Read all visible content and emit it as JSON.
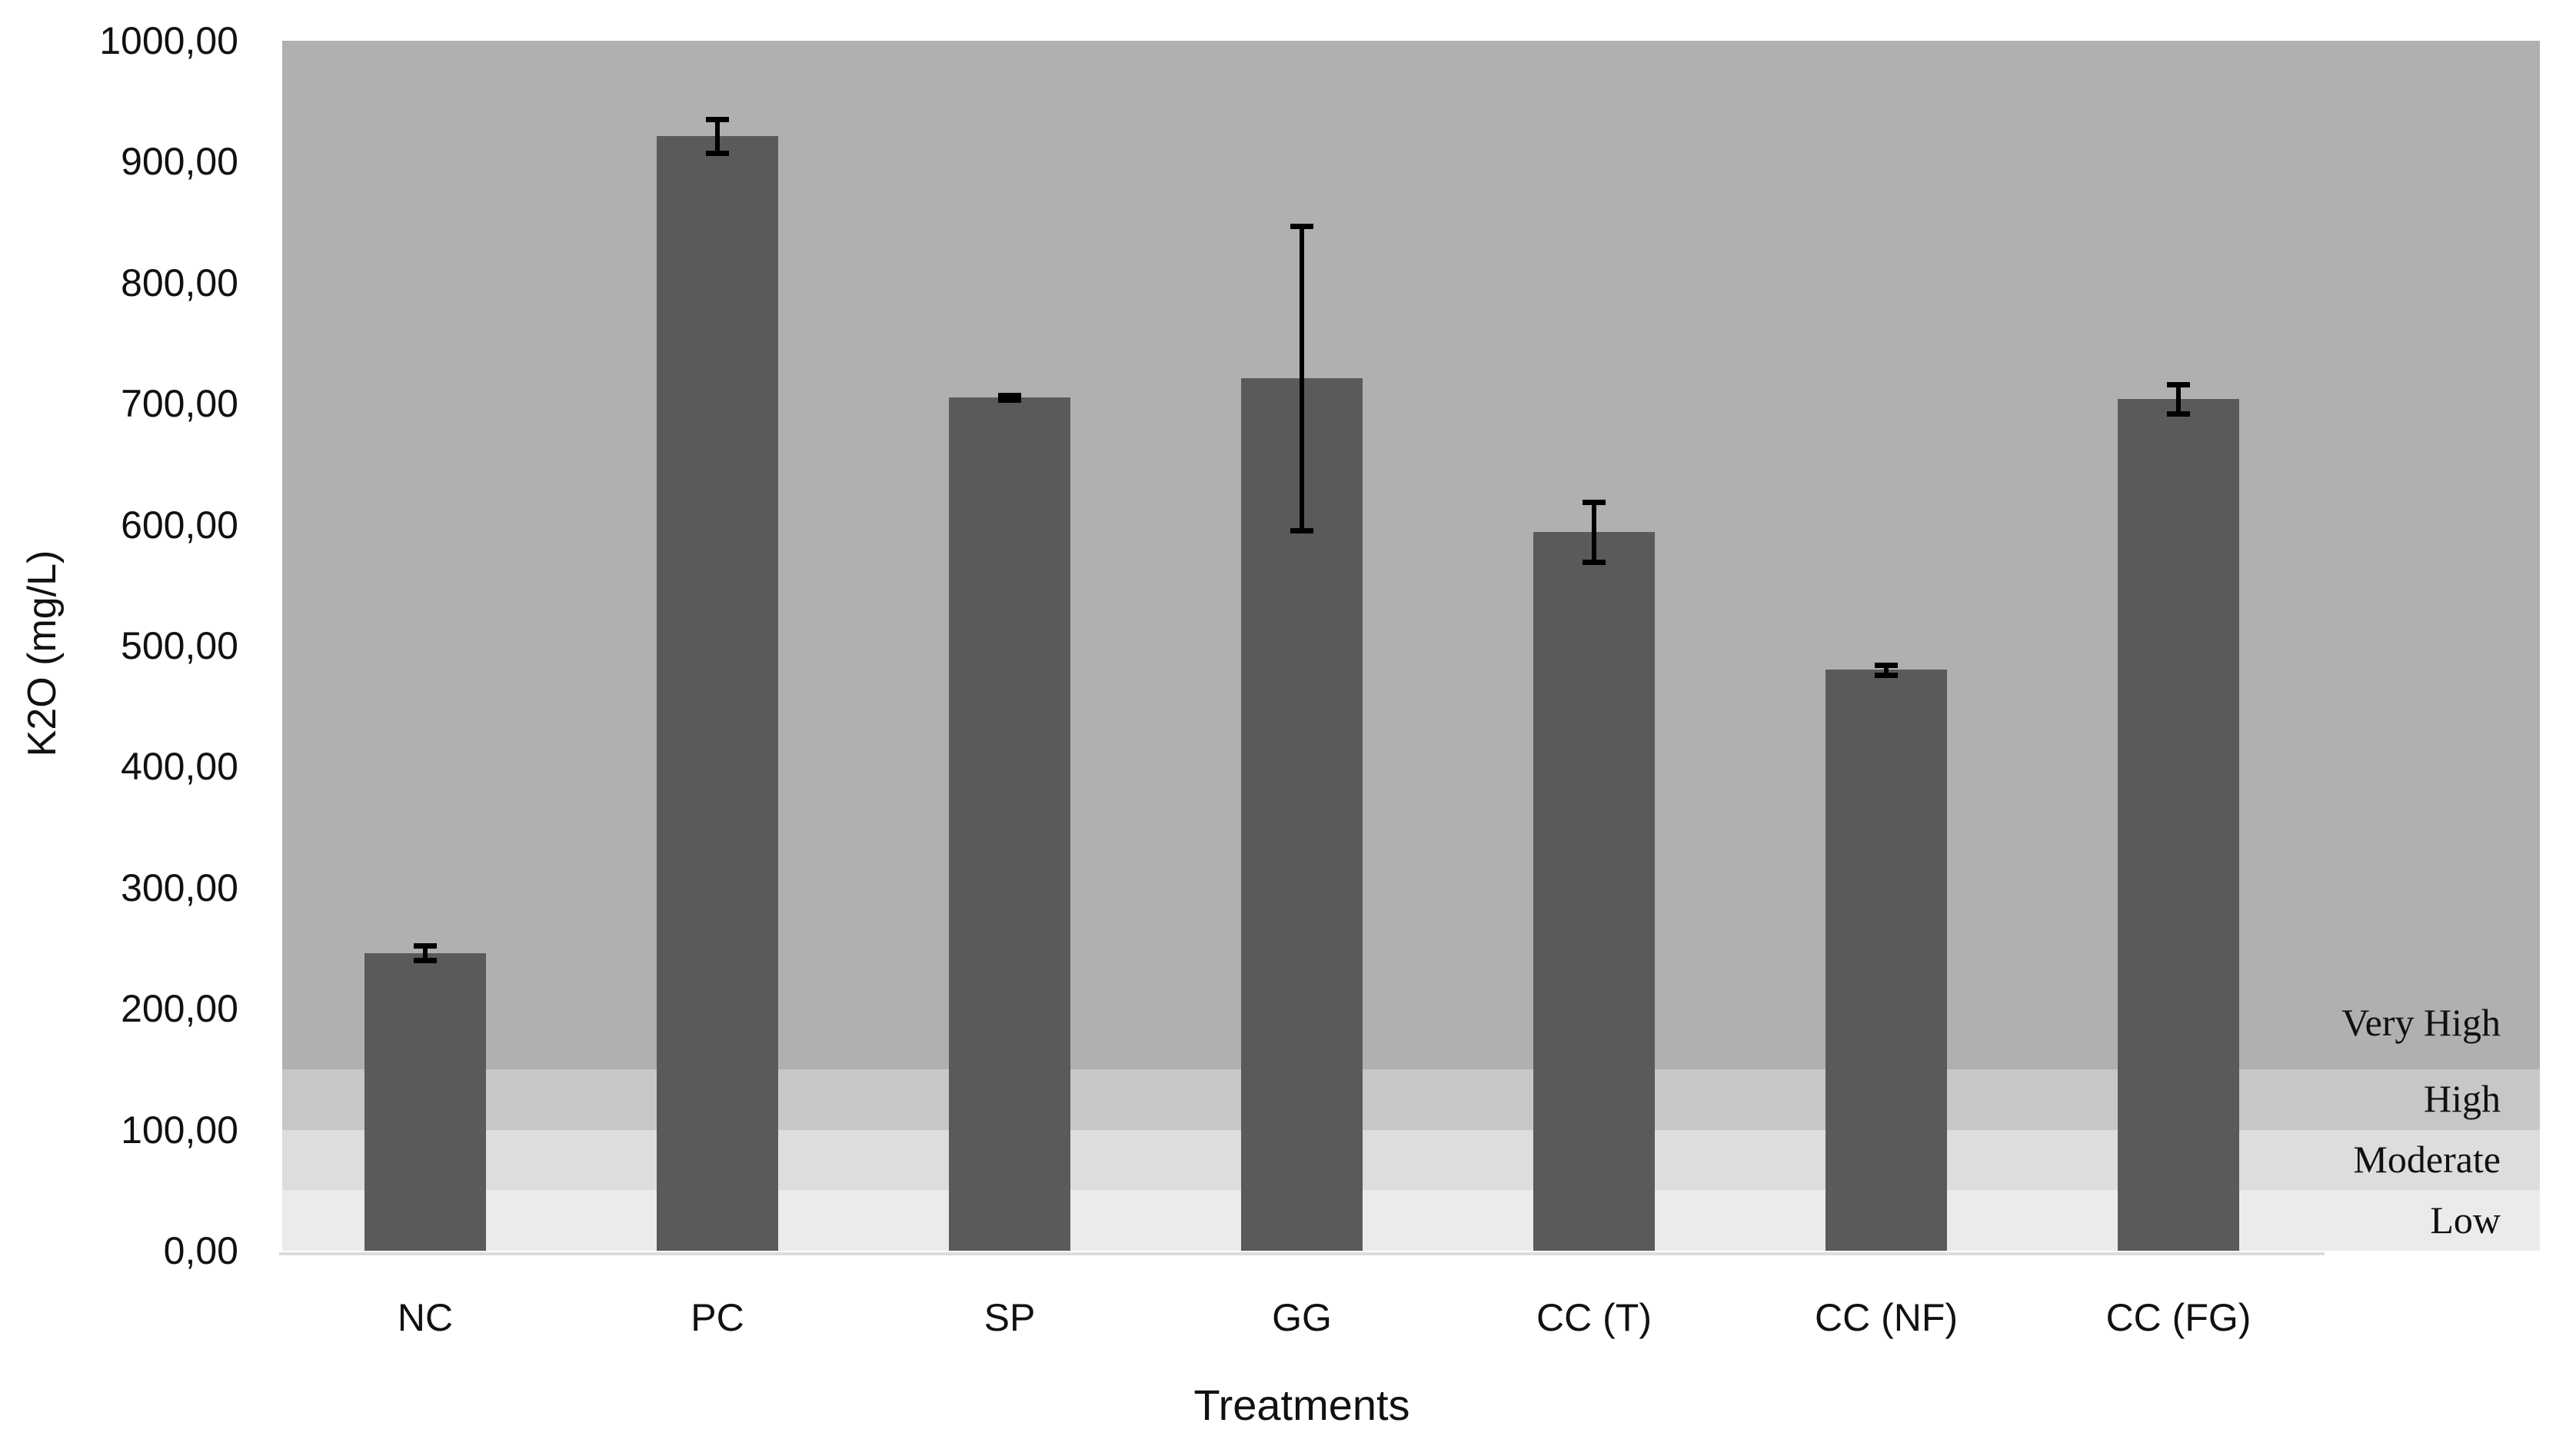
{
  "chart_data": {
    "type": "bar",
    "title": "",
    "xlabel": "Treatments",
    "ylabel": "K2O (mg/L)",
    "ylim": [
      0,
      1000
    ],
    "yticks": [
      "0,00",
      "100,00",
      "200,00",
      "300,00",
      "400,00",
      "500,00",
      "600,00",
      "700,00",
      "800,00",
      "900,00",
      "1000,00"
    ],
    "categories": [
      "NC",
      "PC",
      "SP",
      "GG",
      "CC (T)",
      "CC (NF)",
      "CC (FG)"
    ],
    "values": [
      246,
      921,
      705,
      721,
      594,
      480,
      704
    ],
    "error": [
      6,
      14,
      2,
      126,
      25,
      4,
      12
    ],
    "grid": false,
    "legend": null,
    "background_bands": [
      {
        "label": "Low",
        "from": 0,
        "to": 50,
        "color": "#ebebeb"
      },
      {
        "label": "Moderate",
        "from": 50,
        "to": 100,
        "color": "#dedddd"
      },
      {
        "label": "High",
        "from": 100,
        "to": 150,
        "color": "#c8c7c8"
      },
      {
        "label": "Very High",
        "from": 150,
        "to": 1000,
        "color": "#b1afb0"
      }
    ],
    "bar_color": "#5a5a5a"
  }
}
